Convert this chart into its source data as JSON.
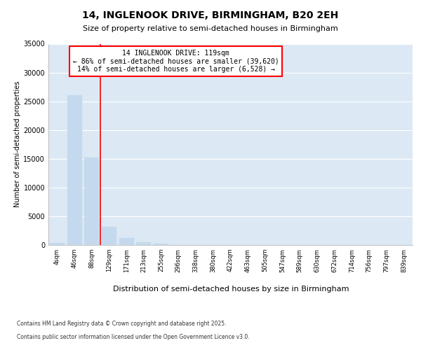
{
  "title_line1": "14, INGLENOOK DRIVE, BIRMINGHAM, B20 2EH",
  "title_line2": "Size of property relative to semi-detached houses in Birmingham",
  "xlabel": "Distribution of semi-detached houses by size in Birmingham",
  "ylabel": "Number of semi-detached properties",
  "bins": [
    "4sqm",
    "46sqm",
    "88sqm",
    "129sqm",
    "171sqm",
    "213sqm",
    "255sqm",
    "296sqm",
    "338sqm",
    "380sqm",
    "422sqm",
    "463sqm",
    "505sqm",
    "547sqm",
    "589sqm",
    "630sqm",
    "672sqm",
    "714sqm",
    "756sqm",
    "797sqm",
    "839sqm"
  ],
  "values": [
    350,
    26100,
    15200,
    3200,
    1200,
    480,
    270,
    0,
    0,
    0,
    0,
    0,
    0,
    0,
    0,
    0,
    0,
    0,
    0,
    0,
    0
  ],
  "bar_color": "#c5d9ee",
  "bar_edgecolor": "#c5d9ee",
  "vline_color": "red",
  "vline_x_index": 2.5,
  "annotation_line1": "14 INGLENOOK DRIVE: 119sqm",
  "annotation_line2": "← 86% of semi-detached houses are smaller (39,620)",
  "annotation_line3": "14% of semi-detached houses are larger (6,528) →",
  "annotation_box_facecolor": "#ffffff",
  "annotation_box_edgecolor": "red",
  "ylim": [
    0,
    35000
  ],
  "yticks": [
    0,
    5000,
    10000,
    15000,
    20000,
    25000,
    30000,
    35000
  ],
  "fig_background": "#ffffff",
  "plot_background": "#dce9f5",
  "grid_color": "#ffffff",
  "footer_line1": "Contains HM Land Registry data © Crown copyright and database right 2025.",
  "footer_line2": "Contains public sector information licensed under the Open Government Licence v3.0."
}
